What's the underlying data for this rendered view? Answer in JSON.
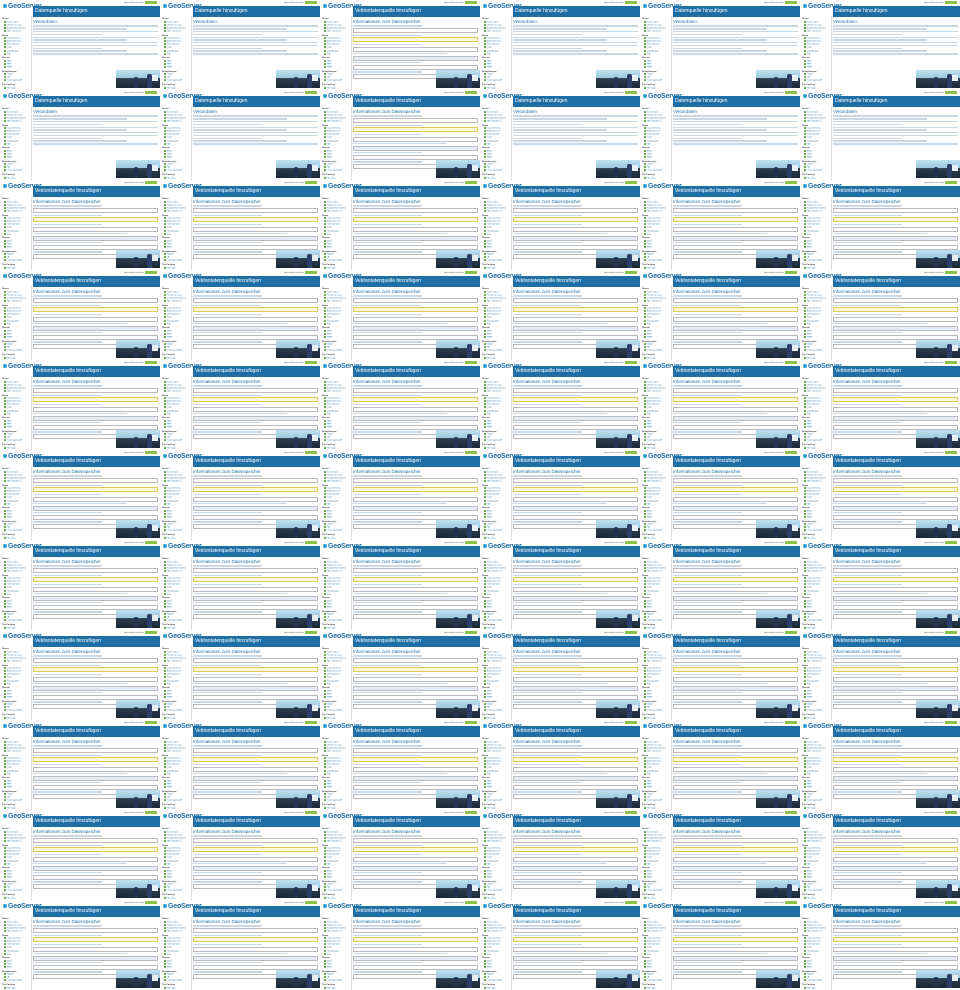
{
  "app": {
    "logo_text": "GeoServer",
    "login_text": "Angemeldet als admin",
    "logout_label": "Abmelden"
  },
  "pages": {
    "datastore": {
      "title": "Datenquelle hinzufügen",
      "subtitle": "Wählen Sie die Art der Datenquelle, die hinzugefügt werden soll.",
      "section_vector": "Vektordaten",
      "section_raster": "Rasterdaten",
      "section_other": "Andere Datenquellen"
    },
    "layer": {
      "title": "Vektordatenquelle hinzufügen",
      "section_basic": "Informationen zum Datenspeicher",
      "section_params": "Verbindungsparameter"
    }
  },
  "sidebar": {
    "sections": [
      {
        "label": "Server",
        "items": [
          "Serverstatus",
          "GeoServer Logs",
          "Kontaktinformationen",
          "Über GeoServer"
        ]
      },
      {
        "label": "Daten",
        "items": [
          "Layer-Vorschau",
          "Arbeitsbereiche",
          "Datenspeicher",
          "Layer",
          "Layergruppen",
          "Stile"
        ]
      },
      {
        "label": "Dienste",
        "items": [
          "WCS",
          "WFS",
          "WMS"
        ]
      },
      {
        "label": "Einstellungen",
        "items": [
          "Global",
          "JAI",
          "Coverage-Zugriff"
        ]
      },
      {
        "label": "Tile Caching",
        "items": [
          "Tile-Layer",
          "Caching Defaults",
          "Gridsets",
          "Disk Quota"
        ]
      },
      {
        "label": "Sicherheit",
        "items": [
          "Einstellungen",
          "Authentifizierung",
          "Passwörter",
          "Benutzer, Gruppen, Rollen"
        ]
      },
      {
        "label": "Demos",
        "items": []
      }
    ]
  },
  "icons": {
    "logo": "globe-icon",
    "bullet": "layer-icon"
  }
}
